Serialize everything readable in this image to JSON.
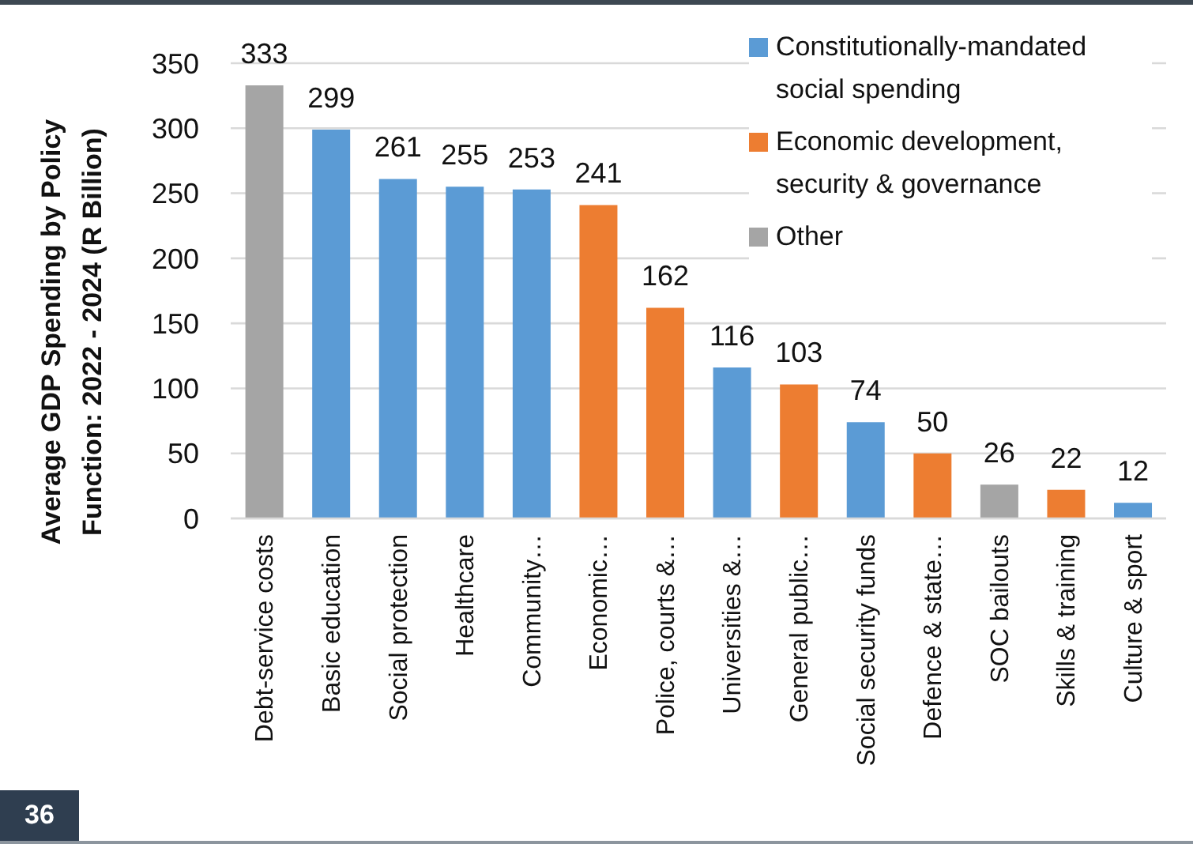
{
  "chart_data": {
    "type": "bar",
    "ylabel": "Average GDP Spending by Policy Function: 2022 - 2024 (R Billion)",
    "categories": [
      "Debt-service costs",
      "Basic education",
      "Social protection",
      "Healthcare",
      "Community…",
      "Economic…",
      "Police, courts &…",
      "Universities &…",
      "General public…",
      "Social security funds",
      "Defence & state…",
      "SOC bailouts",
      "Skills & training",
      "Culture & sport"
    ],
    "series": [
      {
        "name": "Constitutionally-mandated social spending",
        "color": "#5b9bd5",
        "values": [
          null,
          299,
          261,
          255,
          253,
          null,
          null,
          116,
          null,
          74,
          null,
          null,
          null,
          12
        ]
      },
      {
        "name": "Economic development, security & governance",
        "color": "#ed7d31",
        "values": [
          null,
          null,
          null,
          null,
          null,
          241,
          162,
          null,
          103,
          null,
          50,
          null,
          22,
          null
        ]
      },
      {
        "name": "Other",
        "color": "#a5a5a5",
        "values": [
          333,
          null,
          null,
          null,
          null,
          null,
          null,
          null,
          null,
          null,
          null,
          26,
          null,
          null
        ]
      }
    ],
    "stacked": true,
    "ylim": [
      0,
      350
    ],
    "yticks": [
      0,
      50,
      100,
      150,
      200,
      250,
      300,
      350
    ],
    "grid": "y",
    "legend": "top right",
    "data_labels": true,
    "annotations": [
      "36"
    ]
  }
}
